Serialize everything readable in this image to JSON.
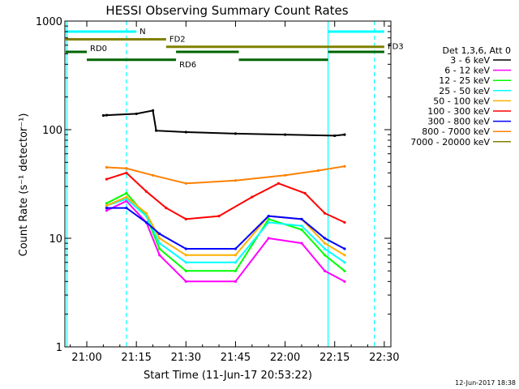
{
  "chart_data": {
    "type": "line",
    "title": "HESSI Observing Summary Count Rates",
    "xlabel": "Start Time (11-Jun-17 20:53:22)",
    "ylabel": "Count Rate (s⁻¹ detector⁻¹)",
    "y_scale": "log",
    "ylim": [
      1,
      1000
    ],
    "xlim": [
      "20:53:22",
      "22:32:00"
    ],
    "x_ticks": [
      "21:00",
      "21:15",
      "21:30",
      "21:45",
      "22:00",
      "22:15",
      "22:30"
    ],
    "y_ticks": [
      "1",
      "10",
      "100",
      "1000"
    ],
    "legend_header": "Det 1,3,6, Att 0",
    "legend_placement": "right",
    "footer": "12-Jun-2017 18:38",
    "series": [
      {
        "name": "3 - 6 keV",
        "color": "#000000",
        "x": [
          "21:05",
          "21:06",
          "21:15",
          "21:20",
          "21:21",
          "21:30",
          "21:45",
          "22:00",
          "22:15",
          "22:18"
        ],
        "y": [
          135,
          136,
          140,
          150,
          98,
          95,
          92,
          90,
          88,
          90
        ]
      },
      {
        "name": "6 - 12 keV",
        "color": "#ff00ff",
        "x": [
          "21:06",
          "21:12",
          "21:18",
          "21:22",
          "21:30",
          "21:45",
          "21:55",
          "22:05",
          "22:12",
          "22:18"
        ],
        "y": [
          18,
          22,
          14,
          7,
          4,
          4,
          10,
          9,
          5,
          4
        ]
      },
      {
        "name": "12 - 25 keV",
        "color": "#00ff00",
        "x": [
          "21:06",
          "21:12",
          "21:18",
          "21:22",
          "21:30",
          "21:45",
          "21:55",
          "22:05",
          "22:12",
          "22:18"
        ],
        "y": [
          21,
          26,
          16,
          8,
          5,
          5,
          15,
          12,
          7,
          5
        ]
      },
      {
        "name": "25 - 50 keV",
        "color": "#00ffff",
        "x": [
          "21:06",
          "21:12",
          "21:18",
          "21:22",
          "21:30",
          "21:45",
          "21:55",
          "22:05",
          "22:12",
          "22:18"
        ],
        "y": [
          20,
          23,
          16,
          9,
          6,
          6,
          14,
          13,
          8,
          6
        ]
      },
      {
        "name": "50 - 100 keV",
        "color": "#ffb000",
        "x": [
          "21:06",
          "21:12",
          "21:18",
          "21:22",
          "21:30",
          "21:45",
          "21:55",
          "22:05",
          "22:12",
          "22:18"
        ],
        "y": [
          20,
          24,
          17,
          10,
          7,
          7,
          16,
          15,
          9,
          7
        ]
      },
      {
        "name": "100 - 300 keV",
        "color": "#ff0000",
        "x": [
          "21:06",
          "21:12",
          "21:18",
          "21:24",
          "21:30",
          "21:40",
          "21:50",
          "21:58",
          "22:06",
          "22:12",
          "22:18"
        ],
        "y": [
          35,
          40,
          27,
          19,
          15,
          16,
          24,
          32,
          26,
          17,
          14
        ]
      },
      {
        "name": "300 - 800 keV",
        "color": "#0000ff",
        "x": [
          "21:06",
          "21:12",
          "21:18",
          "21:22",
          "21:30",
          "21:45",
          "21:55",
          "22:05",
          "22:12",
          "22:18"
        ],
        "y": [
          19,
          19,
          14,
          11,
          8,
          8,
          16,
          15,
          10,
          8
        ]
      },
      {
        "name": "800 - 7000 keV",
        "color": "#ff8000",
        "x": [
          "21:06",
          "21:12",
          "21:20",
          "21:30",
          "21:45",
          "22:00",
          "22:10",
          "22:18"
        ],
        "y": [
          45,
          44,
          38,
          32,
          34,
          38,
          42,
          46
        ]
      },
      {
        "name": "7000 - 20000 keV",
        "color": "#808000",
        "x": [],
        "y": []
      }
    ],
    "state_bars": [
      {
        "label": "N",
        "color": "#00ffff",
        "level": 800,
        "segments": [
          [
            "20:53",
            "21:15"
          ],
          [
            "22:13",
            "22:30"
          ]
        ]
      },
      {
        "label": "FD2",
        "color": "#808000",
        "level": 680,
        "segments": [
          [
            "20:53",
            "21:24"
          ]
        ]
      },
      {
        "label": "FD3",
        "color": "#808000",
        "level": 580,
        "segments": [
          [
            "21:24",
            "22:30"
          ]
        ]
      },
      {
        "label": "RD0",
        "color": "#006400",
        "level": 520,
        "segments": [
          [
            "20:53",
            "21:00"
          ],
          [
            "21:27",
            "21:46"
          ],
          [
            "22:13",
            "22:30"
          ]
        ]
      },
      {
        "label": "RD6",
        "color": "#006400",
        "level": 440,
        "segments": [
          [
            "21:00",
            "21:27"
          ],
          [
            "21:46",
            "22:13"
          ]
        ]
      }
    ],
    "vertical_markers": [
      {
        "time": "20:54",
        "color": "#00ffff",
        "style": "solid"
      },
      {
        "time": "21:12",
        "color": "#00ffff",
        "style": "dashed"
      },
      {
        "time": "22:13",
        "color": "#00ffff",
        "style": "solid"
      },
      {
        "time": "22:27",
        "color": "#00ffff",
        "style": "dashed"
      }
    ]
  }
}
